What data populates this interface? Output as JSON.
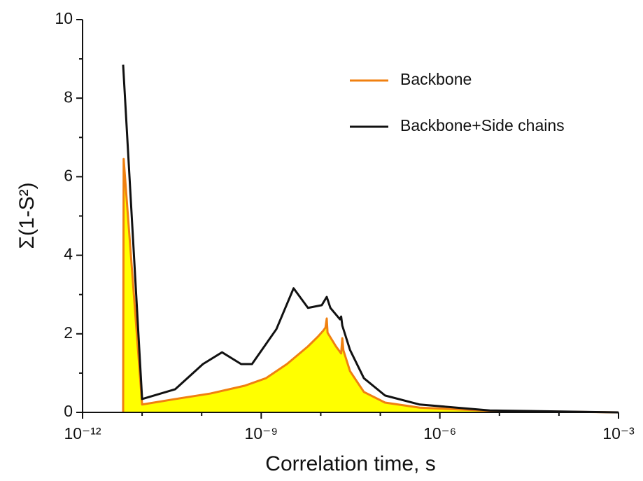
{
  "chart_data": {
    "type": "line",
    "xlabel": "Correlation time, s",
    "ylabel": "Σ(1-S²)",
    "xscale": "log",
    "xlim": [
      1e-12,
      0.001
    ],
    "ylim": [
      0,
      10
    ],
    "xticks": [
      {
        "value": 1e-12,
        "label": "10⁻¹²"
      },
      {
        "value": 1e-09,
        "label": "10⁻⁹"
      },
      {
        "value": 1e-06,
        "label": "10⁻⁶"
      },
      {
        "value": 0.001,
        "label": "10⁻³"
      }
    ],
    "xminorticks": [
      1e-11,
      1e-10,
      1e-08,
      1e-07,
      1e-05,
      0.0001
    ],
    "yticks": [
      0,
      2,
      4,
      6,
      8,
      10
    ],
    "yminorticks": [
      1,
      3,
      5,
      7,
      9
    ],
    "grid": false,
    "legend": "upper right",
    "series": [
      {
        "name": "Backbone",
        "color": "#f08010",
        "fill_color": "#ffff00",
        "x": [
          4.8e-12,
          4.9e-12,
          1e-11,
          3.6e-11,
          1.4e-10,
          5.3e-10,
          1.2e-09,
          2.7e-09,
          6.1e-09,
          9.1e-09,
          1.1e-08,
          1.2e-08,
          1.26e-08,
          1.3e-08,
          1.8e-08,
          2.2e-08,
          2.3e-08,
          2.4e-08,
          3.1e-08,
          5.3e-08,
          1.2e-07,
          4.6e-07,
          6.9e-06,
          0.001
        ],
        "values": [
          0,
          6.45,
          0.2,
          0.34,
          0.48,
          0.68,
          0.87,
          1.23,
          1.68,
          1.94,
          2.08,
          2.16,
          2.39,
          2.03,
          1.68,
          1.5,
          1.89,
          1.58,
          1.05,
          0.52,
          0.25,
          0.12,
          0.04,
          0
        ]
      },
      {
        "name": "Backbone+Side chains",
        "color": "#111111",
        "x": [
          4.8e-12,
          1e-11,
          3.6e-11,
          1.05e-10,
          2.2e-10,
          4.6e-10,
          7e-10,
          1.8e-09,
          3.5e-09,
          6.1e-09,
          1.04e-08,
          1.26e-08,
          1.45e-08,
          2.1e-08,
          2.2e-08,
          2.3e-08,
          3.1e-08,
          5.3e-08,
          1.2e-07,
          4.6e-07,
          6.9e-06,
          0.001
        ],
        "values": [
          8.85,
          0.34,
          0.59,
          1.23,
          1.53,
          1.23,
          1.23,
          2.12,
          3.16,
          2.66,
          2.73,
          2.94,
          2.66,
          2.37,
          2.44,
          2.21,
          1.59,
          0.87,
          0.43,
          0.2,
          0.05,
          0
        ]
      }
    ]
  }
}
